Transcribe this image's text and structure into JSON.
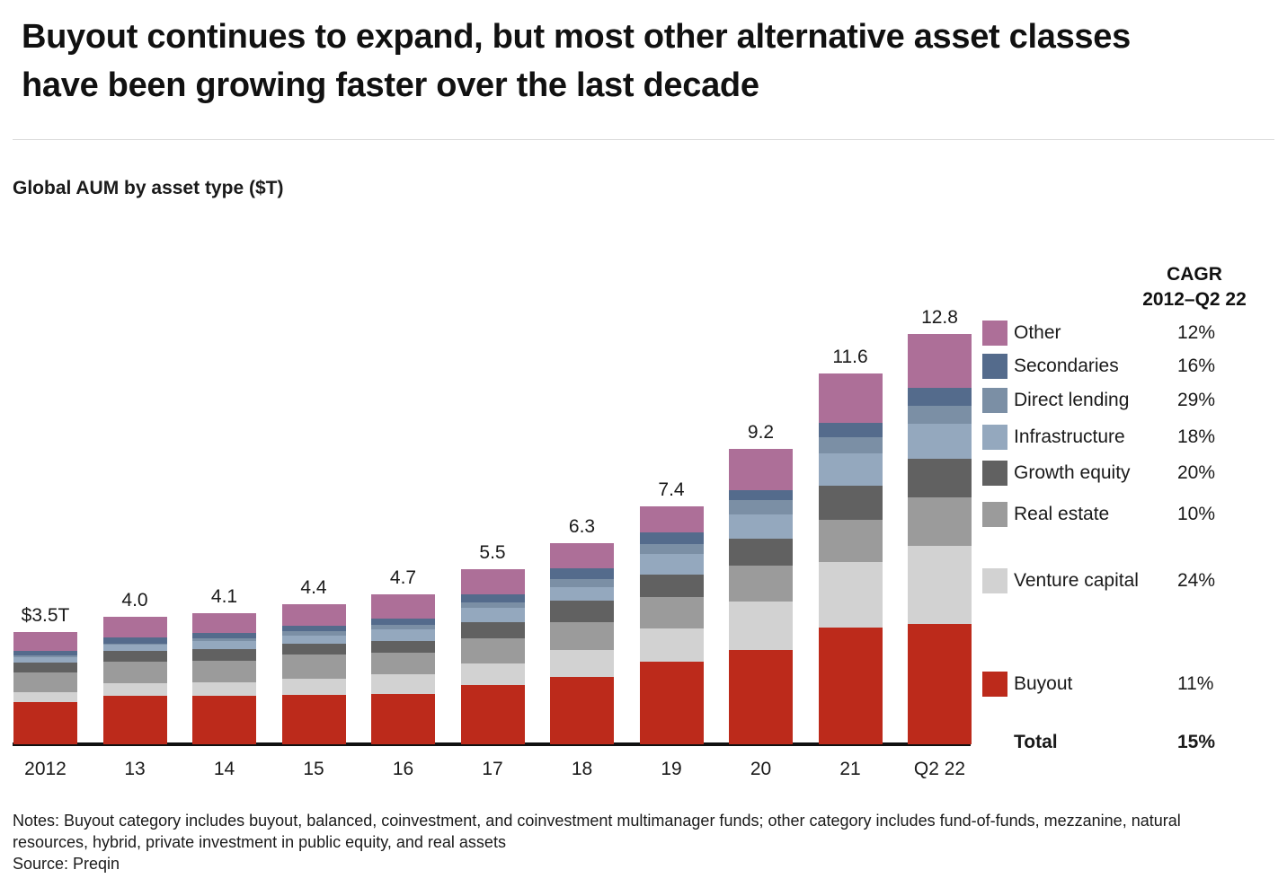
{
  "header": {
    "title": "Buyout continues to expand, but most other alternative asset classes have been growing faster over the last decade"
  },
  "chart_data": {
    "type": "bar",
    "variant": "stacked",
    "title": "Global AUM by asset type ($T)",
    "unit": "$ trillion",
    "grid": "off",
    "legend_position": "right",
    "categories": [
      "2012",
      "13",
      "14",
      "15",
      "16",
      "17",
      "18",
      "19",
      "20",
      "21",
      "Q2 22"
    ],
    "totals": [
      3.5,
      4.0,
      4.1,
      4.4,
      4.7,
      5.5,
      6.3,
      7.4,
      9.2,
      11.6,
      12.8
    ],
    "total_labels": [
      "$3.5T",
      "4.0",
      "4.1",
      "4.4",
      "4.7",
      "5.5",
      "6.3",
      "7.4",
      "9.2",
      "11.6",
      "12.8"
    ],
    "cagr_header_line1": "CAGR",
    "cagr_header_line2": "2012–Q2 22",
    "series": [
      {
        "name": "Other",
        "color": "#ad6f98",
        "cagr": "12%",
        "values": [
          0.59,
          0.67,
          0.61,
          0.67,
          0.75,
          0.79,
          0.8,
          0.8,
          1.28,
          1.55,
          1.67
        ]
      },
      {
        "name": "Secondaries",
        "color": "#546b8c",
        "cagr": "16%",
        "values": [
          0.14,
          0.17,
          0.17,
          0.19,
          0.19,
          0.26,
          0.33,
          0.37,
          0.31,
          0.45,
          0.55
        ]
      },
      {
        "name": "Direct lending",
        "color": "#7b8fa5",
        "cagr": "29%",
        "values": [
          0.04,
          0.05,
          0.1,
          0.12,
          0.16,
          0.16,
          0.25,
          0.31,
          0.45,
          0.5,
          0.57
        ]
      },
      {
        "name": "Infrastructure",
        "color": "#94a8be",
        "cagr": "18%",
        "values": [
          0.19,
          0.2,
          0.25,
          0.25,
          0.36,
          0.44,
          0.43,
          0.63,
          0.76,
          1.0,
          1.1
        ]
      },
      {
        "name": "Growth equity",
        "color": "#616161",
        "cagr": "20%",
        "values": [
          0.29,
          0.31,
          0.35,
          0.34,
          0.37,
          0.5,
          0.66,
          0.7,
          0.84,
          1.08,
          1.21
        ]
      },
      {
        "name": "Real estate",
        "color": "#9b9b9b",
        "cagr": "10%",
        "values": [
          0.62,
          0.69,
          0.68,
          0.75,
          0.67,
          0.81,
          0.88,
          0.98,
          1.12,
          1.3,
          1.5
        ]
      },
      {
        "name": "Venture capital",
        "color": "#d2d2d2",
        "cagr": "24%",
        "values": [
          0.31,
          0.4,
          0.41,
          0.53,
          0.62,
          0.67,
          0.82,
          1.06,
          1.5,
          2.05,
          2.43
        ]
      },
      {
        "name": "Buyout",
        "color": "#bc2a1b",
        "cagr": "11%",
        "values": [
          1.32,
          1.5,
          1.52,
          1.53,
          1.56,
          1.84,
          2.11,
          2.57,
          2.95,
          3.65,
          3.76
        ]
      }
    ],
    "total_row": {
      "label": "Total",
      "value": "15%"
    }
  },
  "footer": {
    "notes": "Notes: Buyout category includes buyout, balanced, coinvestment, and coinvestment multimanager funds; other category includes fund-of-funds, mezzanine, natural resources, hybrid, private investment in public equity, and real assets",
    "source": "Source: Preqin"
  }
}
